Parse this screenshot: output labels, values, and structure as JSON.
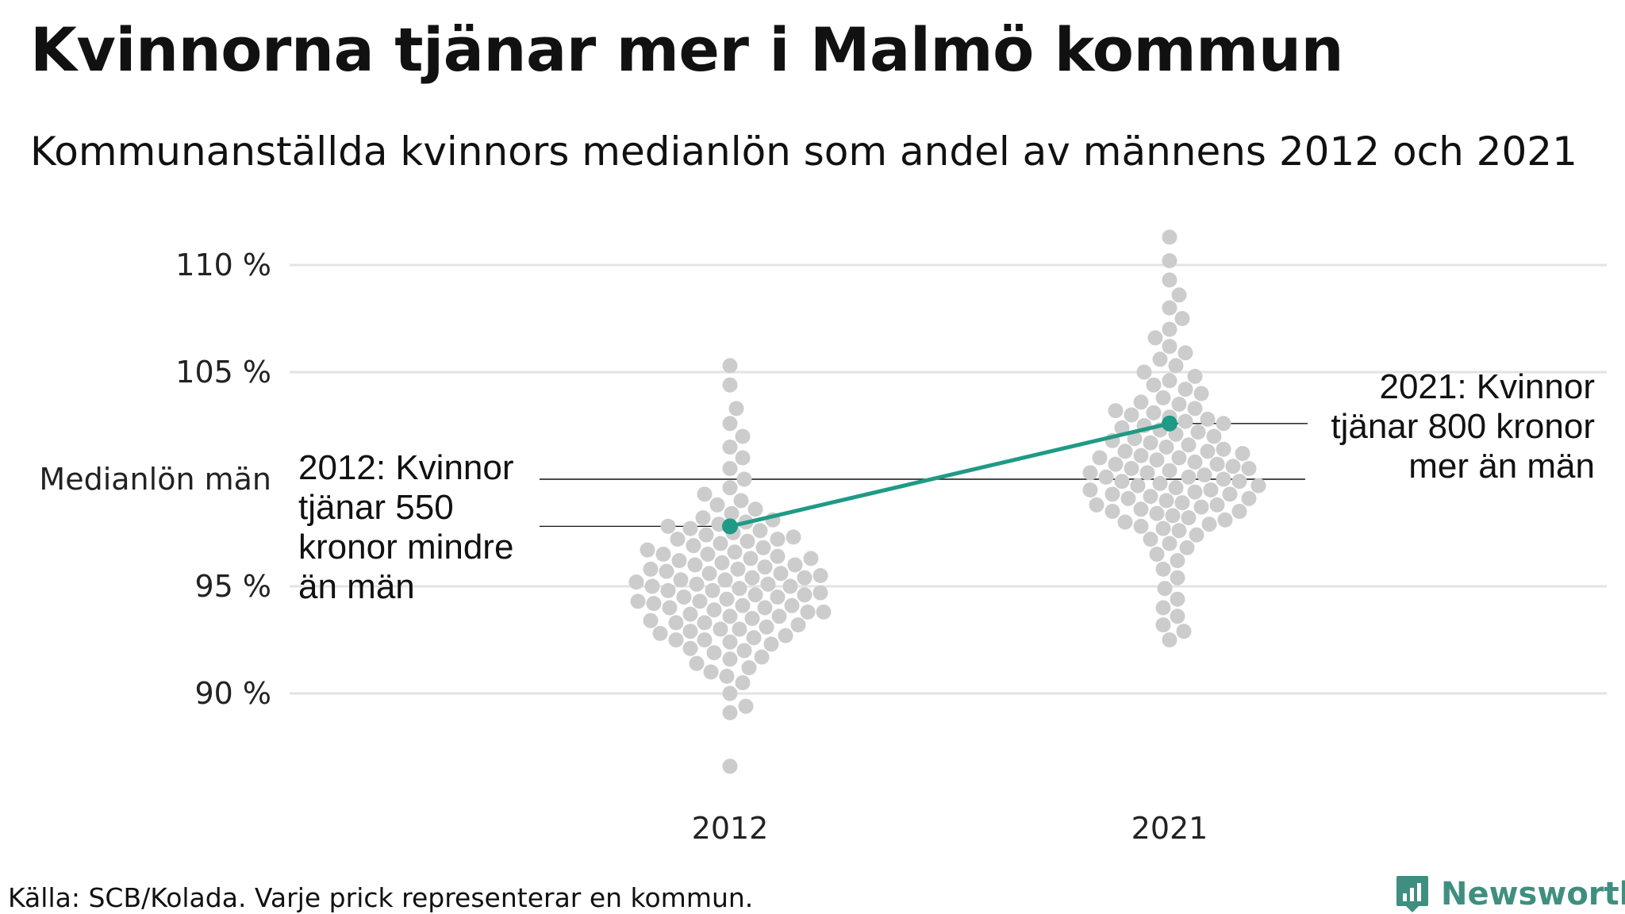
{
  "title": "Kvinnorna tjänar mer i Malmö kommun",
  "subtitle": "Kommunanställda kvinnors medianlön som andel av männens 2012 och 2021",
  "source": "Källa: SCB/Kolada. Varje prick representerar en kommun.",
  "brand": {
    "name": "Newsworthy",
    "logo_icon": "bar-chart-icon"
  },
  "colors": {
    "dots": "#cccccc",
    "highlight": "#1f9a85",
    "grid": "#e3e3e3",
    "reference": "#111111",
    "brand": "#3f8f80"
  },
  "chart_data": {
    "type": "scatter",
    "subtype": "beeswarm",
    "categories": [
      "2012",
      "2021"
    ],
    "y_unit": "% of men's median wage",
    "ylim": [
      85.5,
      112
    ],
    "yticks": [
      {
        "value": 90,
        "label": "90 %"
      },
      {
        "value": 95,
        "label": "95 %"
      },
      {
        "value": 105,
        "label": "105 %"
      },
      {
        "value": 110,
        "label": "110 %"
      }
    ],
    "reference_line": {
      "value": 100,
      "label": "Medianlön män"
    },
    "grid": true,
    "series": [
      {
        "category": "2012",
        "values": [
          86.6,
          89.1,
          89.4,
          90.0,
          90.5,
          90.8,
          91.0,
          91.2,
          91.4,
          91.6,
          91.7,
          91.9,
          92.0,
          92.1,
          92.3,
          92.4,
          92.5,
          92.5,
          92.6,
          92.7,
          92.8,
          92.9,
          93.0,
          93.0,
          93.1,
          93.2,
          93.3,
          93.3,
          93.4,
          93.5,
          93.6,
          93.6,
          93.7,
          93.8,
          93.8,
          93.9,
          94.0,
          94.0,
          94.1,
          94.1,
          94.2,
          94.3,
          94.3,
          94.4,
          94.5,
          94.5,
          94.6,
          94.6,
          94.7,
          94.8,
          94.8,
          94.9,
          95.0,
          95.0,
          95.1,
          95.1,
          95.2,
          95.3,
          95.3,
          95.4,
          95.4,
          95.5,
          95.6,
          95.6,
          95.7,
          95.8,
          95.8,
          95.9,
          96.0,
          96.0,
          96.1,
          96.2,
          96.3,
          96.3,
          96.4,
          96.5,
          96.5,
          96.6,
          96.7,
          96.8,
          96.9,
          97.0,
          97.1,
          97.2,
          97.2,
          97.3,
          97.4,
          97.5,
          97.6,
          97.7,
          97.8,
          97.9,
          98.0,
          98.1,
          98.2,
          98.4,
          98.6,
          98.8,
          99.0,
          99.3,
          99.6,
          100.0,
          100.5,
          101.0,
          101.5,
          102.0,
          102.6,
          103.3,
          104.4,
          105.3
        ],
        "highlight": {
          "name": "Malmö",
          "value": 97.8,
          "label": "2012: Kvinnor tjänar 550 kronor mindre än män"
        }
      },
      {
        "category": "2021",
        "values": [
          92.5,
          92.9,
          93.2,
          93.6,
          94.0,
          94.4,
          94.9,
          95.4,
          95.8,
          96.2,
          96.5,
          96.8,
          97.0,
          97.2,
          97.4,
          97.6,
          97.7,
          97.8,
          97.9,
          98.0,
          98.1,
          98.2,
          98.3,
          98.4,
          98.5,
          98.5,
          98.6,
          98.7,
          98.8,
          98.8,
          98.9,
          99.0,
          99.1,
          99.1,
          99.2,
          99.3,
          99.3,
          99.4,
          99.5,
          99.5,
          99.6,
          99.7,
          99.7,
          99.8,
          99.9,
          99.9,
          100.0,
          100.1,
          100.1,
          100.2,
          100.3,
          100.3,
          100.4,
          100.5,
          100.5,
          100.6,
          100.7,
          100.7,
          100.8,
          100.9,
          101.0,
          101.0,
          101.1,
          101.2,
          101.3,
          101.3,
          101.4,
          101.5,
          101.6,
          101.7,
          101.8,
          101.9,
          102.0,
          102.1,
          102.2,
          102.3,
          102.4,
          102.5,
          102.6,
          102.7,
          102.8,
          102.9,
          103.0,
          103.1,
          103.2,
          103.3,
          103.5,
          103.6,
          103.8,
          104.0,
          104.2,
          104.4,
          104.6,
          104.8,
          105.0,
          105.3,
          105.6,
          105.9,
          106.2,
          106.6,
          107.0,
          107.5,
          108.0,
          108.6,
          109.3,
          110.2,
          111.3
        ],
        "highlight": {
          "name": "Malmö",
          "value": 102.6,
          "label": "2021: Kvinnor tjänar 800 kronor mer än män"
        }
      }
    ]
  },
  "annotations": {
    "left": [
      "2012: Kvinnor",
      "tjänar 550",
      "kronor mindre",
      "än män"
    ],
    "right": [
      "2021: Kvinnor",
      "tjänar 800 kronor",
      "mer än män"
    ]
  }
}
